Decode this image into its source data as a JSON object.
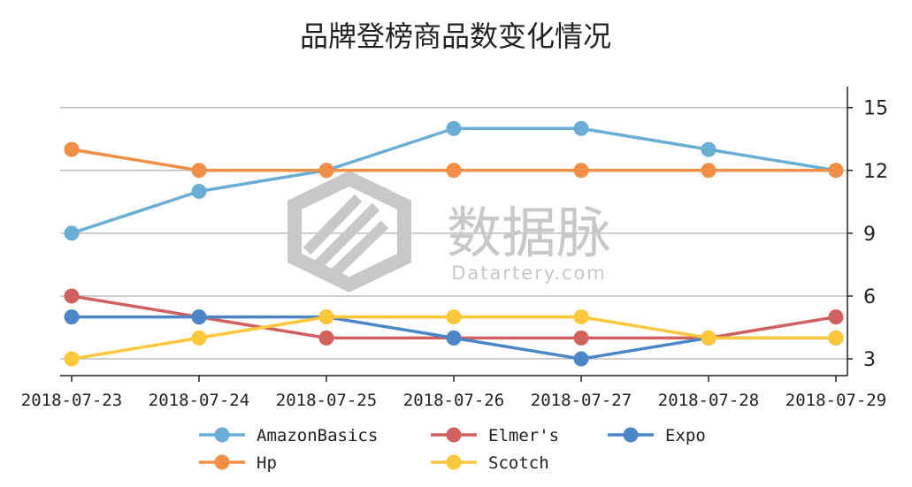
{
  "chart_data": {
    "type": "line",
    "title": "品牌登榜商品数变化情况",
    "categories": [
      "2018-07-23",
      "2018-07-24",
      "2018-07-25",
      "2018-07-26",
      "2018-07-27",
      "2018-07-28",
      "2018-07-29"
    ],
    "ylim": [
      2.2,
      16
    ],
    "yticks": [
      "3",
      "6",
      "9",
      "12",
      "15"
    ],
    "ytick_values": [
      3,
      6,
      9,
      12,
      15
    ],
    "grid": true,
    "y_axis_side": "right",
    "legend_position": "bottom",
    "series": [
      {
        "name": "AmazonBasics",
        "color": "#6aaed6",
        "values": [
          9,
          11,
          12,
          14,
          14,
          13,
          12
        ]
      },
      {
        "name": "Elmer's",
        "color": "#d1605e",
        "values": [
          6,
          5,
          4,
          4,
          4,
          4,
          5
        ]
      },
      {
        "name": "Expo",
        "color": "#4a86c8",
        "values": [
          5,
          5,
          5,
          4,
          3,
          4,
          4
        ]
      },
      {
        "name": "Hp",
        "color": "#f28e46",
        "values": [
          13,
          12,
          12,
          12,
          12,
          12,
          12
        ]
      },
      {
        "name": "Scotch",
        "color": "#fcc73a",
        "values": [
          3,
          4,
          5,
          5,
          5,
          4,
          4
        ]
      }
    ],
    "draw_order": [
      0,
      1,
      2,
      4,
      3
    ],
    "legend_order": [
      0,
      1,
      2,
      3,
      4
    ]
  },
  "watermark": {
    "text": "数据脉",
    "subtext": "Datartery.com",
    "color": "#c8c8c8"
  }
}
